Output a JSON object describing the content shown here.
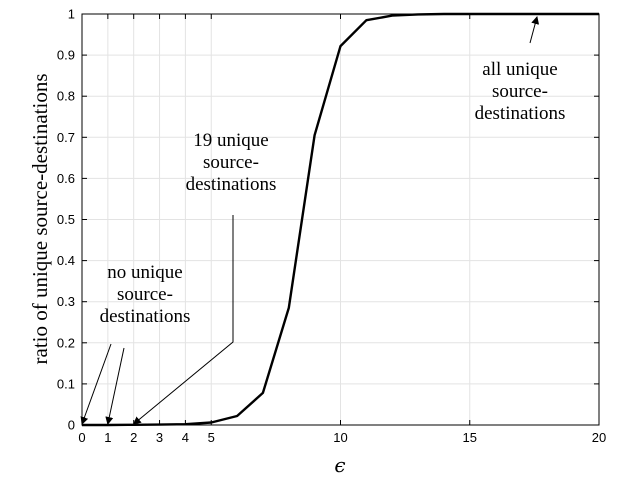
{
  "chart_data": {
    "type": "line",
    "xlabel": "ϵ",
    "ylabel": "ratio of unique source-destinations",
    "xlim": [
      0,
      20
    ],
    "ylim": [
      0,
      1
    ],
    "grid": true,
    "x_ticks": [
      0,
      1,
      2,
      3,
      4,
      5,
      10,
      15,
      20
    ],
    "x_tick_labels": [
      "0",
      "1",
      "2",
      "3",
      "4",
      "5",
      "10",
      "15",
      "20"
    ],
    "y_ticks": [
      0,
      0.1,
      0.2,
      0.3,
      0.4,
      0.5,
      0.6,
      0.7,
      0.8,
      0.9,
      1
    ],
    "y_tick_labels": [
      "0",
      "0.1",
      "0.2",
      "0.3",
      "0.4",
      "0.5",
      "0.6",
      "0.7",
      "0.8",
      "0.9",
      "1"
    ],
    "series": [
      {
        "color": "#000000",
        "x": [
          0,
          1,
          2,
          3,
          4,
          5,
          6,
          7,
          8,
          9,
          10,
          11,
          12,
          13,
          14,
          15,
          16,
          17,
          18,
          19,
          20
        ],
        "values": [
          0,
          0,
          0.0005,
          0.001,
          0.002,
          0.006,
          0.022,
          0.078,
          0.285,
          0.705,
          0.922,
          0.985,
          0.996,
          0.999,
          1,
          1,
          1,
          1,
          1,
          1,
          1
        ]
      }
    ],
    "annotations": [
      {
        "lines": [
          "all unique",
          "source-",
          "destinations"
        ],
        "arrow_targets": [
          [
            17.6,
            1.0
          ]
        ]
      },
      {
        "lines": [
          "19 unique",
          "source-",
          "destinations"
        ],
        "arrow_targets": [
          [
            2.0,
            0.0
          ]
        ]
      },
      {
        "lines": [
          "no unique",
          "source-",
          "destinations"
        ],
        "arrow_targets": [
          [
            0.0,
            0.0
          ],
          [
            1.0,
            0.0
          ]
        ]
      }
    ]
  }
}
